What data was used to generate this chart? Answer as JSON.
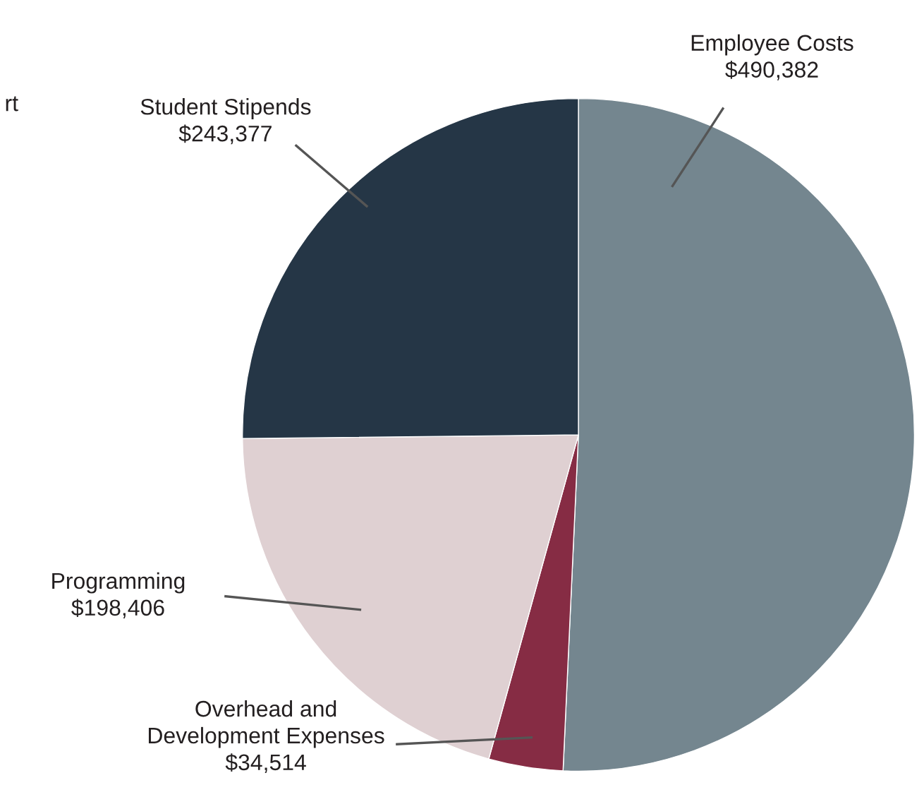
{
  "chart_data": {
    "type": "pie",
    "categories": [
      "Employee Costs",
      "Overhead and\nDevelopment Expenses",
      "Programming",
      "Student Stipends"
    ],
    "values": [
      490382,
      34514,
      198406,
      243377
    ],
    "colors": [
      "#74868f",
      "#862c44",
      "#dfd0d2",
      "#253646"
    ],
    "value_labels": [
      "$490,382",
      "$34,514",
      "$198,406",
      "$243,377"
    ],
    "annotations": [
      "rt"
    ]
  }
}
